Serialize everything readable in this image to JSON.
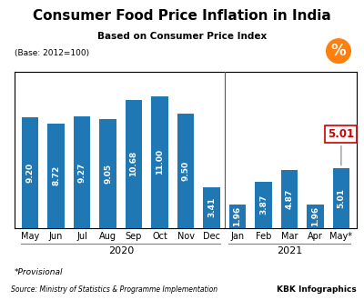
{
  "chart_data": {
    "type": "bar",
    "title": "Consumer Food Price Inflation in India",
    "subtitle": "Based on Consumer Price Index",
    "base_note": "(Base: 2012=100)",
    "categories": [
      "May",
      "Jun",
      "Jul",
      "Aug",
      "Sep",
      "Oct",
      "Nov",
      "Dec",
      "Jan",
      "Feb",
      "Mar",
      "Apr",
      "May*"
    ],
    "values": [
      9.2,
      8.72,
      9.27,
      9.05,
      10.68,
      11.0,
      9.5,
      3.41,
      1.96,
      3.87,
      4.87,
      1.96,
      5.01
    ],
    "value_labels": [
      "9.20",
      "8.72",
      "9.27",
      "9.05",
      "10.68",
      "11.00",
      "9.50",
      "3.41",
      "1.96",
      "3.87",
      "4.87",
      "1.96",
      "5.01"
    ],
    "data_labels": true,
    "ylim": [
      0,
      13
    ],
    "yticks": [],
    "tick_labels": "x",
    "grid": false,
    "annotations": [
      {
        "text": "2020",
        "from": "May",
        "to": "Dec"
      },
      {
        "text": "2021",
        "from": "Jan",
        "to": "May*"
      },
      {
        "text": "5.01",
        "at": "May*",
        "color": "#cc0000"
      }
    ],
    "footnote": "*Provisional",
    "source": "Source: Ministry of Statistics & Programme Implementation",
    "credit": "KBK Infographics",
    "badge": "%"
  }
}
